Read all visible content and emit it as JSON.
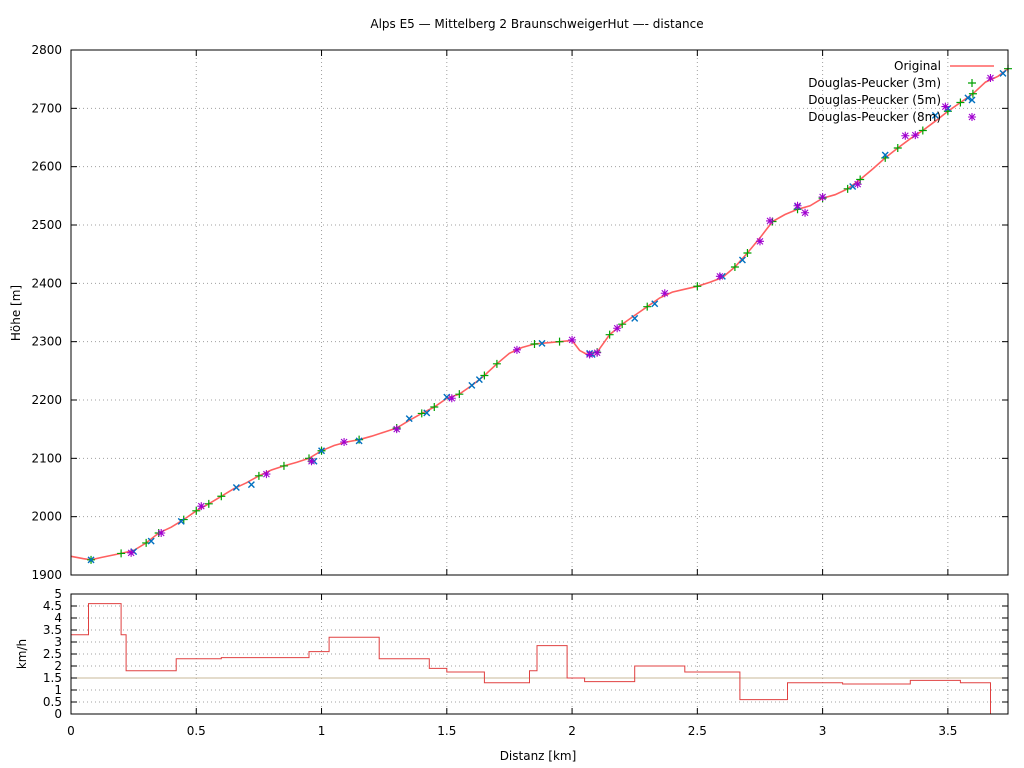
{
  "chart_data": {
    "type": "line",
    "title": "Alps E5 — Mittelberg 2 BraunschweigerHut —- distance",
    "top_panel": {
      "xlabel": "",
      "ylabel": "Höhe [m]",
      "xlim": [
        0,
        3.74
      ],
      "ylim": [
        1900,
        2800
      ],
      "yticks": [
        1900,
        2000,
        2100,
        2200,
        2300,
        2400,
        2500,
        2600,
        2700,
        2800
      ],
      "xticks": [
        0,
        0.5,
        1,
        1.5,
        2,
        2.5,
        3,
        3.5
      ],
      "grid": true,
      "legend_position": "top-right",
      "series": [
        {
          "name": "Original",
          "style": "line",
          "color": "#ff6060",
          "x": [
            0,
            0.05,
            0.08,
            0.12,
            0.2,
            0.25,
            0.3,
            0.35,
            0.4,
            0.45,
            0.5,
            0.55,
            0.6,
            0.65,
            0.7,
            0.75,
            0.8,
            0.85,
            0.9,
            0.95,
            1.0,
            1.05,
            1.1,
            1.15,
            1.2,
            1.25,
            1.3,
            1.35,
            1.4,
            1.45,
            1.5,
            1.55,
            1.6,
            1.65,
            1.7,
            1.75,
            1.8,
            1.85,
            1.9,
            1.95,
            2.0,
            2.03,
            2.06,
            2.1,
            2.15,
            2.2,
            2.25,
            2.3,
            2.35,
            2.4,
            2.45,
            2.5,
            2.55,
            2.6,
            2.65,
            2.7,
            2.75,
            2.8,
            2.85,
            2.9,
            2.95,
            3.0,
            3.05,
            3.1,
            3.15,
            3.2,
            3.25,
            3.3,
            3.35,
            3.4,
            3.45,
            3.5,
            3.55,
            3.6,
            3.65,
            3.7,
            3.74
          ],
          "y": [
            1932,
            1928,
            1926,
            1930,
            1937,
            1942,
            1955,
            1972,
            1982,
            1995,
            2010,
            2022,
            2035,
            2048,
            2058,
            2070,
            2080,
            2087,
            2093,
            2100,
            2113,
            2122,
            2128,
            2132,
            2138,
            2145,
            2152,
            2165,
            2177,
            2188,
            2203,
            2210,
            2225,
            2242,
            2262,
            2280,
            2290,
            2296,
            2298,
            2300,
            2302,
            2285,
            2278,
            2282,
            2312,
            2330,
            2345,
            2360,
            2375,
            2385,
            2390,
            2395,
            2402,
            2410,
            2428,
            2452,
            2478,
            2506,
            2518,
            2527,
            2533,
            2546,
            2552,
            2562,
            2578,
            2596,
            2615,
            2632,
            2648,
            2662,
            2678,
            2695,
            2710,
            2725,
            2745,
            2755,
            2768
          ]
        },
        {
          "name": "Douglas-Peucker (3m)",
          "style": "marker-plus",
          "color": "#00a000",
          "x": [
            0.08,
            0.2,
            0.3,
            0.35,
            0.45,
            0.5,
            0.55,
            0.6,
            0.75,
            0.85,
            0.95,
            1.0,
            1.15,
            1.3,
            1.4,
            1.45,
            1.55,
            1.65,
            1.7,
            1.85,
            1.95,
            2.1,
            2.15,
            2.2,
            2.3,
            2.5,
            2.65,
            2.7,
            2.8,
            2.9,
            3.0,
            3.1,
            3.15,
            3.25,
            3.3,
            3.4,
            3.5,
            3.55,
            3.6,
            3.74
          ],
          "y": [
            1926,
            1937,
            1955,
            1972,
            1995,
            2010,
            2022,
            2035,
            2070,
            2087,
            2100,
            2113,
            2132,
            2152,
            2177,
            2188,
            2210,
            2242,
            2262,
            2296,
            2300,
            2282,
            2312,
            2330,
            2360,
            2395,
            2428,
            2452,
            2506,
            2527,
            2546,
            2562,
            2578,
            2615,
            2632,
            2662,
            2695,
            2710,
            2725,
            2768
          ]
        },
        {
          "name": "Douglas-Peucker (5m)",
          "style": "marker-x",
          "color": "#0070c0",
          "x": [
            0.08,
            0.25,
            0.32,
            0.44,
            0.66,
            0.72,
            0.97,
            1.0,
            1.15,
            1.35,
            1.42,
            1.5,
            1.6,
            1.63,
            1.88,
            2.07,
            2.08,
            2.25,
            2.33,
            2.6,
            2.68,
            2.9,
            3.12,
            3.25,
            3.45,
            3.5,
            3.58,
            3.72
          ],
          "y": [
            1926,
            1940,
            1958,
            1992,
            2050,
            2055,
            2095,
            2113,
            2130,
            2168,
            2178,
            2205,
            2225,
            2235,
            2297,
            2280,
            2278,
            2340,
            2365,
            2412,
            2440,
            2532,
            2566,
            2620,
            2688,
            2700,
            2718,
            2760
          ]
        },
        {
          "name": "Douglas-Peucker (8m)",
          "style": "marker-star",
          "color": "#a000d0",
          "x": [
            0.24,
            0.36,
            0.52,
            0.78,
            0.96,
            1.09,
            1.3,
            1.52,
            1.78,
            2.0,
            2.07,
            2.1,
            2.18,
            2.37,
            2.59,
            2.75,
            2.79,
            2.9,
            2.93,
            3.0,
            3.14,
            3.33,
            3.37,
            3.49,
            3.67
          ],
          "y": [
            1938,
            1972,
            2018,
            2073,
            2095,
            2128,
            2150,
            2203,
            2286,
            2303,
            2278,
            2281,
            2323,
            2383,
            2412,
            2472,
            2507,
            2533,
            2521,
            2548,
            2570,
            2653,
            2654,
            2703,
            2752
          ]
        }
      ]
    },
    "bottom_panel": {
      "xlabel": "Distanz [km]",
      "ylabel": "km/h",
      "xlim": [
        0,
        3.74
      ],
      "ylim": [
        0,
        5
      ],
      "yticks": [
        0,
        0.5,
        1,
        1.5,
        2,
        2.5,
        3,
        3.5,
        4,
        4.5,
        5
      ],
      "xticks": [
        0,
        0.5,
        1,
        1.5,
        2,
        2.5,
        3,
        3.5
      ],
      "grid": true,
      "reference_line": 1.5,
      "series": [
        {
          "name": "",
          "style": "step",
          "color": "#e04040",
          "x": [
            0,
            0.07,
            0.07,
            0.09,
            0.09,
            0.2,
            0.2,
            0.22,
            0.22,
            0.42,
            0.42,
            0.6,
            0.6,
            0.95,
            0.95,
            1.03,
            1.03,
            1.23,
            1.23,
            1.43,
            1.43,
            1.5,
            1.5,
            1.65,
            1.65,
            1.83,
            1.83,
            1.86,
            1.86,
            1.98,
            1.98,
            2.0,
            2.0,
            2.05,
            2.05,
            2.25,
            2.25,
            2.45,
            2.45,
            2.67,
            2.67,
            2.86,
            2.86,
            3.08,
            3.08,
            3.35,
            3.35,
            3.55,
            3.55,
            3.67,
            3.67
          ],
          "y": [
            3.3,
            3.3,
            4.6,
            4.6,
            4.6,
            4.6,
            3.3,
            3.3,
            1.8,
            1.8,
            2.3,
            2.3,
            2.35,
            2.35,
            2.6,
            2.6,
            3.2,
            3.2,
            2.3,
            2.3,
            1.9,
            1.9,
            1.75,
            1.75,
            1.3,
            1.3,
            1.8,
            1.8,
            2.85,
            2.85,
            1.5,
            1.5,
            1.5,
            1.5,
            1.35,
            1.35,
            2.0,
            2.0,
            1.75,
            1.75,
            0.6,
            0.6,
            1.3,
            1.3,
            1.25,
            1.25,
            1.4,
            1.4,
            1.3,
            1.3,
            0
          ]
        }
      ]
    }
  }
}
